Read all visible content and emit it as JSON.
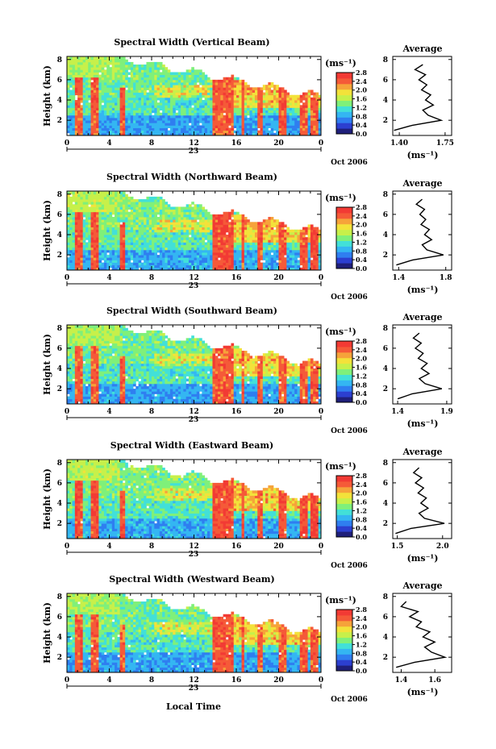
{
  "colors": {
    "colormap": [
      "#1f1f7a",
      "#2c3fd0",
      "#2f7ef0",
      "#34b6f2",
      "#42e0d8",
      "#7ff07a",
      "#c7f04a",
      "#f3e23a",
      "#f6a33a",
      "#f55a38",
      "#f23a34"
    ],
    "axis": "#000000",
    "profile_line": "#000000"
  },
  "xlabel": "Local Time",
  "chart_data": [
    {
      "type": "heatmap",
      "title": "Spectral Width (Vertical Beam)",
      "ylabel": "Height (km)",
      "yticks": [
        "2",
        "4",
        "6",
        "8"
      ],
      "xticks": [
        "0",
        "4",
        "8",
        "12",
        "16",
        "20",
        "0"
      ],
      "date_day": "23",
      "date_label": "Oct 2006",
      "colorbar": {
        "unit": "(ms⁻¹)",
        "ticks": [
          "0.0",
          "0.4",
          "0.8",
          "1.2",
          "1.6",
          "2.0",
          "2.4",
          "2.8"
        ],
        "range": [
          0,
          2.8
        ]
      },
      "profile": {
        "title": "Average",
        "unit": "(ms⁻¹)",
        "xticks": [
          "1.40",
          "1.75"
        ],
        "xlim": [
          1.35,
          1.8
        ],
        "heights": [
          1.0,
          1.5,
          2.0,
          2.5,
          3.0,
          3.5,
          4.0,
          4.5,
          5.0,
          5.5,
          6.0,
          6.5,
          7.0,
          7.5
        ],
        "values": [
          1.36,
          1.5,
          1.72,
          1.62,
          1.58,
          1.66,
          1.6,
          1.64,
          1.57,
          1.61,
          1.55,
          1.6,
          1.52,
          1.58
        ]
      }
    },
    {
      "type": "heatmap",
      "title": "Spectral Width (Northward Beam)",
      "ylabel": "Height (km)",
      "yticks": [
        "2",
        "4",
        "6",
        "8"
      ],
      "xticks": [
        "0",
        "4",
        "8",
        "12",
        "16",
        "20",
        "0"
      ],
      "date_day": "23",
      "date_label": "Oct 2006",
      "colorbar": {
        "unit": "(ms⁻¹)",
        "ticks": [
          "0.0",
          "0.4",
          "0.8",
          "1.2",
          "1.6",
          "2.0",
          "2.4",
          "2.8"
        ],
        "range": [
          0,
          2.8
        ]
      },
      "profile": {
        "title": "Average",
        "unit": "(ms⁻¹)",
        "xticks": [
          "1.4",
          "1.8"
        ],
        "xlim": [
          1.35,
          1.85
        ],
        "heights": [
          1.0,
          1.5,
          2.0,
          2.5,
          3.0,
          3.5,
          4.0,
          4.5,
          5.0,
          5.5,
          6.0,
          6.5,
          7.0,
          7.5
        ],
        "values": [
          1.38,
          1.52,
          1.78,
          1.64,
          1.6,
          1.68,
          1.62,
          1.66,
          1.59,
          1.63,
          1.58,
          1.62,
          1.55,
          1.6
        ]
      }
    },
    {
      "type": "heatmap",
      "title": "Spectral Width (Southward Beam)",
      "ylabel": "Height (km)",
      "yticks": [
        "2",
        "4",
        "6",
        "8"
      ],
      "xticks": [
        "0",
        "4",
        "8",
        "12",
        "16",
        "20",
        "0"
      ],
      "date_day": "23",
      "date_label": "Oct 2006",
      "colorbar": {
        "unit": "(ms⁻¹)",
        "ticks": [
          "0.0",
          "0.4",
          "0.8",
          "1.2",
          "1.6",
          "2.0",
          "2.4",
          "2.8"
        ],
        "range": [
          0,
          2.8
        ]
      },
      "profile": {
        "title": "Average",
        "unit": "(ms⁻¹)",
        "xticks": [
          "1.4",
          "1.9"
        ],
        "xlim": [
          1.35,
          1.95
        ],
        "heights": [
          1.0,
          1.5,
          2.0,
          2.5,
          3.0,
          3.5,
          4.0,
          4.5,
          5.0,
          5.5,
          6.0,
          6.5,
          7.0,
          7.5
        ],
        "values": [
          1.4,
          1.55,
          1.85,
          1.68,
          1.62,
          1.72,
          1.64,
          1.7,
          1.61,
          1.66,
          1.58,
          1.64,
          1.56,
          1.62
        ]
      }
    },
    {
      "type": "heatmap",
      "title": "Spectral Width (Eastward Beam)",
      "ylabel": "Height (km)",
      "yticks": [
        "2",
        "4",
        "6",
        "8"
      ],
      "xticks": [
        "0",
        "4",
        "8",
        "12",
        "16",
        "20",
        "0"
      ],
      "date_day": "23",
      "date_label": "Oct 2006",
      "colorbar": {
        "unit": "(ms⁻¹)",
        "ticks": [
          "0.0",
          "0.4",
          "0.8",
          "1.2",
          "1.6",
          "2.0",
          "2.4",
          "2.8"
        ],
        "range": [
          0,
          2.8
        ]
      },
      "profile": {
        "title": "Average",
        "unit": "(ms⁻¹)",
        "xticks": [
          "1.5",
          "2.0"
        ],
        "xlim": [
          1.45,
          2.1
        ],
        "heights": [
          1.0,
          1.5,
          2.0,
          2.5,
          3.0,
          3.5,
          4.0,
          4.5,
          5.0,
          5.5,
          6.0,
          6.5,
          7.0,
          7.5
        ],
        "values": [
          1.48,
          1.65,
          2.02,
          1.8,
          1.74,
          1.84,
          1.76,
          1.82,
          1.73,
          1.79,
          1.7,
          1.77,
          1.68,
          1.74
        ]
      }
    },
    {
      "type": "heatmap",
      "title": "Spectral Width (Westward Beam)",
      "ylabel": "Height (km)",
      "yticks": [
        "2",
        "4",
        "6",
        "8"
      ],
      "xticks": [
        "0",
        "4",
        "8",
        "12",
        "16",
        "20",
        "0"
      ],
      "date_day": "23",
      "date_label": "Oct 2006",
      "colorbar": {
        "unit": "(ms⁻¹)",
        "ticks": [
          "0.0",
          "0.4",
          "0.8",
          "1.2",
          "1.6",
          "2.0",
          "2.4",
          "2.8"
        ],
        "range": [
          0,
          2.8
        ]
      },
      "profile": {
        "title": "Average",
        "unit": "(ms⁻¹)",
        "xticks": [
          "1.4",
          "1.6"
        ],
        "xlim": [
          1.35,
          1.7
        ],
        "heights": [
          1.0,
          1.5,
          2.0,
          2.5,
          3.0,
          3.5,
          4.0,
          4.5,
          5.0,
          5.5,
          6.0,
          6.5,
          7.0,
          7.5
        ],
        "values": [
          1.37,
          1.48,
          1.66,
          1.58,
          1.54,
          1.6,
          1.53,
          1.57,
          1.49,
          1.52,
          1.45,
          1.5,
          1.4,
          1.43
        ]
      }
    }
  ]
}
